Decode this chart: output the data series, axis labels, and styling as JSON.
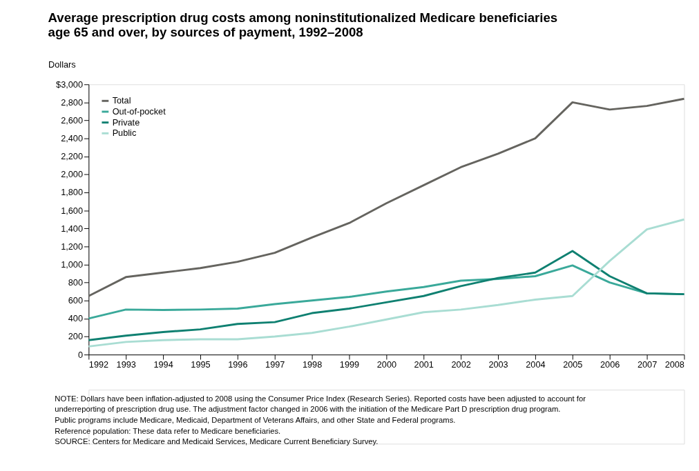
{
  "chart_data": {
    "type": "line",
    "title": [
      "Average prescription drug costs among noninstitutionalized Medicare beneficiaries",
      "age 65 and over, by sources of payment, 1992–2008"
    ],
    "ylabel": "Dollars",
    "x": [
      1992,
      1993,
      1994,
      1995,
      1996,
      1997,
      1998,
      1999,
      2000,
      2001,
      2002,
      2003,
      2004,
      2005,
      2006,
      2007,
      2008
    ],
    "series": [
      {
        "name": "Total",
        "color": "#65645f",
        "values": [
          650,
          860,
          910,
          960,
          1030,
          1130,
          1300,
          1460,
          1680,
          1880,
          2080,
          2230,
          2400,
          2800,
          2720,
          2760,
          2840
        ]
      },
      {
        "name": "Out-of-pocket",
        "color": "#3aa99a",
        "values": [
          400,
          500,
          495,
          500,
          510,
          560,
          600,
          640,
          700,
          750,
          820,
          840,
          870,
          990,
          800,
          680,
          670
        ]
      },
      {
        "name": "Private",
        "color": "#0f8071",
        "values": [
          160,
          210,
          250,
          280,
          340,
          360,
          460,
          510,
          580,
          650,
          760,
          850,
          910,
          1150,
          870,
          680,
          670
        ]
      },
      {
        "name": "Public",
        "color": "#a9ddd3",
        "values": [
          90,
          140,
          160,
          170,
          170,
          200,
          240,
          310,
          390,
          470,
          500,
          550,
          610,
          650,
          1040,
          1390,
          1500
        ]
      }
    ],
    "xlim": [
      1992,
      2008
    ],
    "xticks": [
      1992,
      1993,
      1994,
      1995,
      1996,
      1997,
      1998,
      1999,
      2000,
      2001,
      2002,
      2003,
      2004,
      2005,
      2006,
      2007,
      2008
    ],
    "ylim": [
      0,
      3000
    ],
    "yticks": [
      {
        "value": 0,
        "label": "0"
      },
      {
        "value": 200,
        "label": "200"
      },
      {
        "value": 400,
        "label": "400"
      },
      {
        "value": 600,
        "label": "600"
      },
      {
        "value": 800,
        "label": "800"
      },
      {
        "value": 1000,
        "label": "1,000"
      },
      {
        "value": 1200,
        "label": "1,200"
      },
      {
        "value": 1400,
        "label": "1,400"
      },
      {
        "value": 1600,
        "label": "1,600"
      },
      {
        "value": 1800,
        "label": "1,800"
      },
      {
        "value": 2000,
        "label": "2,000"
      },
      {
        "value": 2200,
        "label": "2,200"
      },
      {
        "value": 2400,
        "label": "2,400"
      },
      {
        "value": 2600,
        "label": "2,600"
      },
      {
        "value": 2800,
        "label": "2,800"
      },
      {
        "value": 3000,
        "label": "$3,000"
      }
    ],
    "grid": false,
    "legend": "top left",
    "marker": "none",
    "line_style": "solid",
    "annotations": [
      "NOTE: Dollars have been inflation-adjusted to 2008 using the Consumer Price Index (Research Series). Reported costs have been adjusted to account for underreporting of prescription drug use. The adjustment factor changed in 2006 with the initiation of the Medicare Part D prescription drug program. Public programs include Medicare, Medicaid, Department of Veterans Affairs, and other State and Federal programs.",
      "Reference population: These data refer to Medicare beneficiaries.",
      "SOURCE: Centers for Medicare and Medicaid Services, Medicare Current Beneficiary Survey."
    ]
  }
}
